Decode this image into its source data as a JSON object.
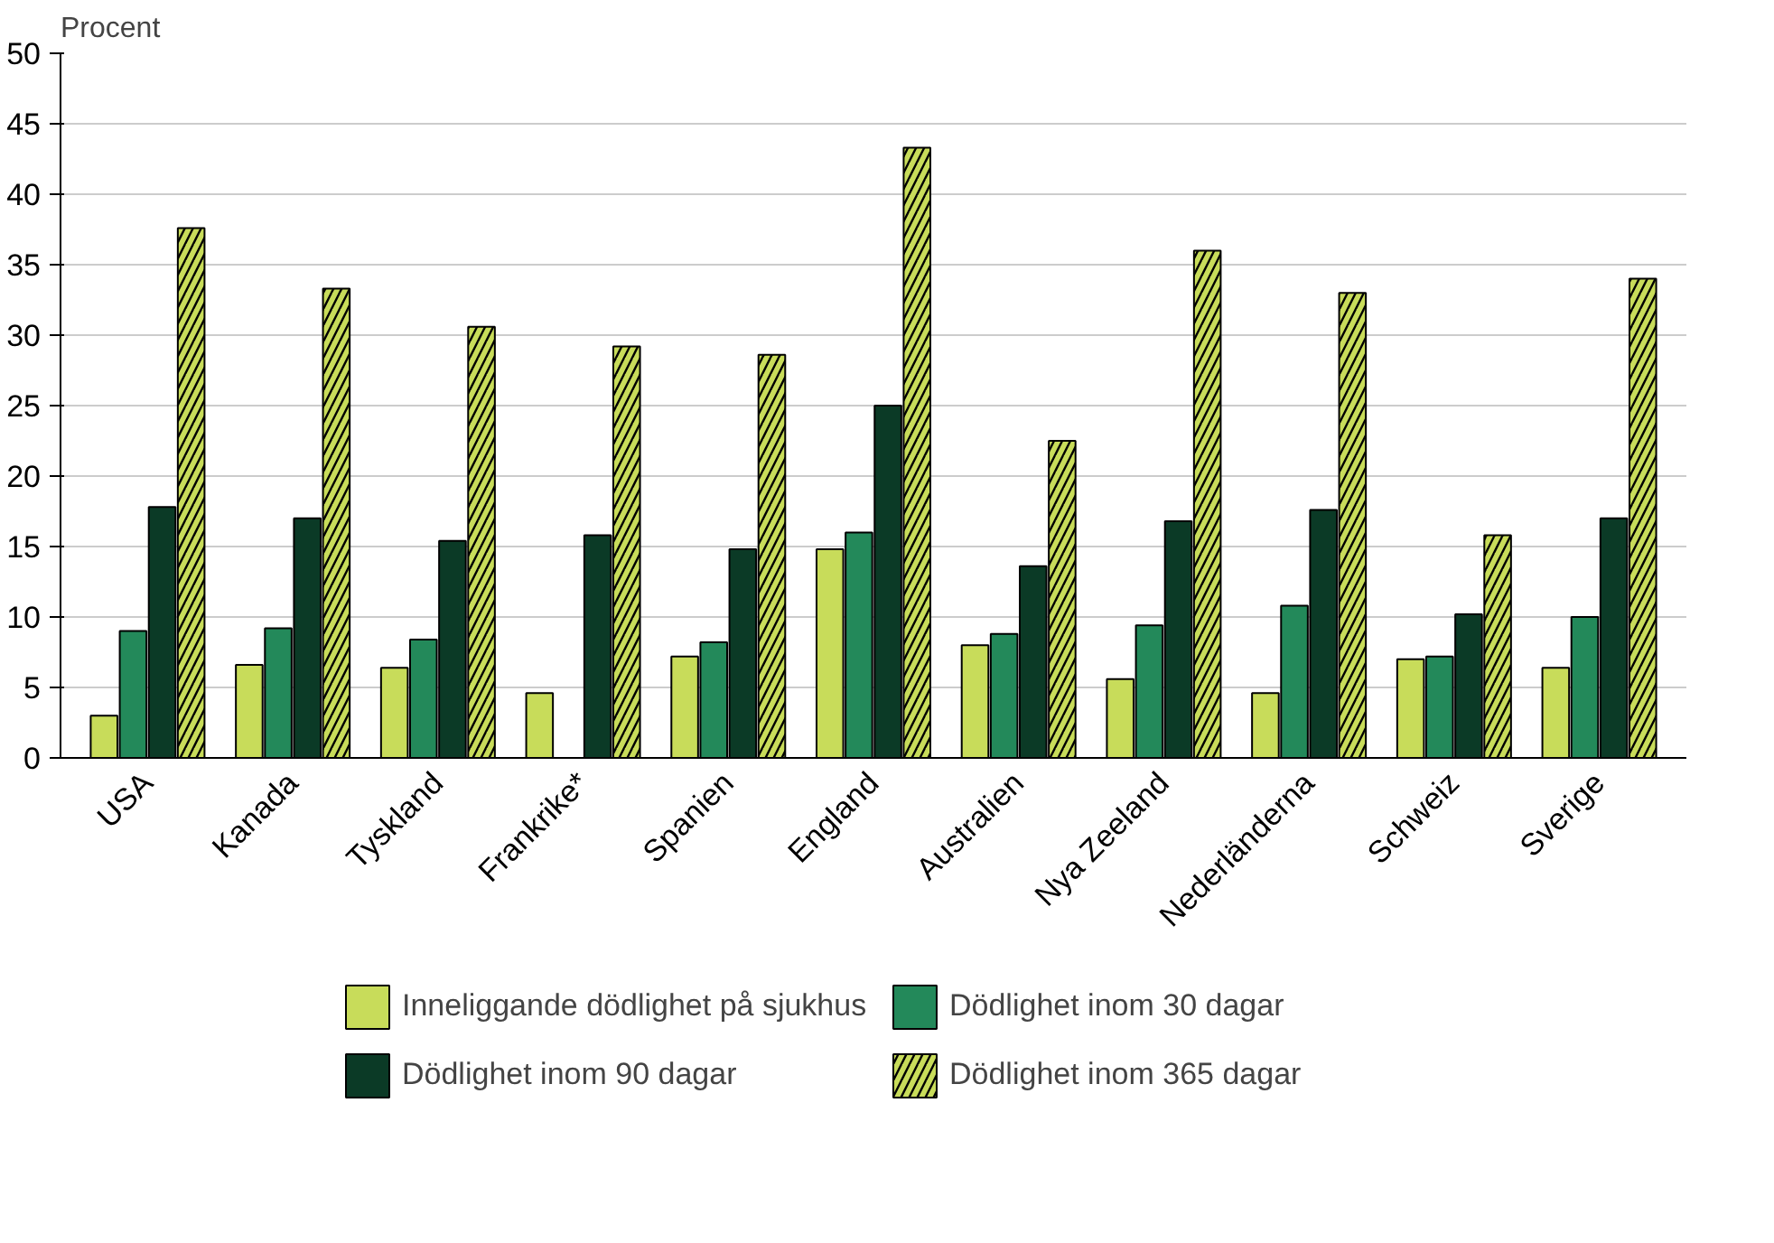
{
  "chart_data": {
    "type": "bar",
    "ylabel": "Procent",
    "categories": [
      "USA",
      "Kanada",
      "Tyskland",
      "Frankrike*",
      "Spanien",
      "England",
      "Australien",
      "Nya Zeeland",
      "Nederländerna",
      "Schweiz",
      "Sverige"
    ],
    "series": [
      {
        "name": "Inneliggande dödlighet på sjukhus",
        "color": "#c8dc5a",
        "values": [
          3.0,
          6.6,
          6.4,
          4.6,
          7.2,
          14.8,
          8.0,
          5.6,
          4.6,
          7.0,
          6.4
        ]
      },
      {
        "name": "Dödlighet inom 30 dagar",
        "color": "#23895a",
        "values": [
          9.0,
          9.2,
          8.4,
          null,
          8.2,
          16.0,
          8.8,
          9.4,
          10.8,
          7.2,
          10.0
        ]
      },
      {
        "name": "Dödlighet inom 90 dagar",
        "color": "#0b3a26",
        "values": [
          17.8,
          17.0,
          15.4,
          15.8,
          14.8,
          25.0,
          13.6,
          16.8,
          17.6,
          10.2,
          17.0
        ]
      },
      {
        "name": "Dödlighet inom 365 dagar",
        "color": "#c8dc5a",
        "values": [
          37.6,
          33.3,
          30.6,
          29.2,
          28.6,
          43.3,
          22.5,
          36.0,
          33.0,
          15.8,
          34.0
        ]
      }
    ],
    "ylim": [
      0,
      50
    ],
    "yticks": [
      0,
      5,
      10,
      15,
      20,
      25,
      30,
      35,
      40,
      45,
      50
    ],
    "grid": "y",
    "legend": "bottom"
  }
}
